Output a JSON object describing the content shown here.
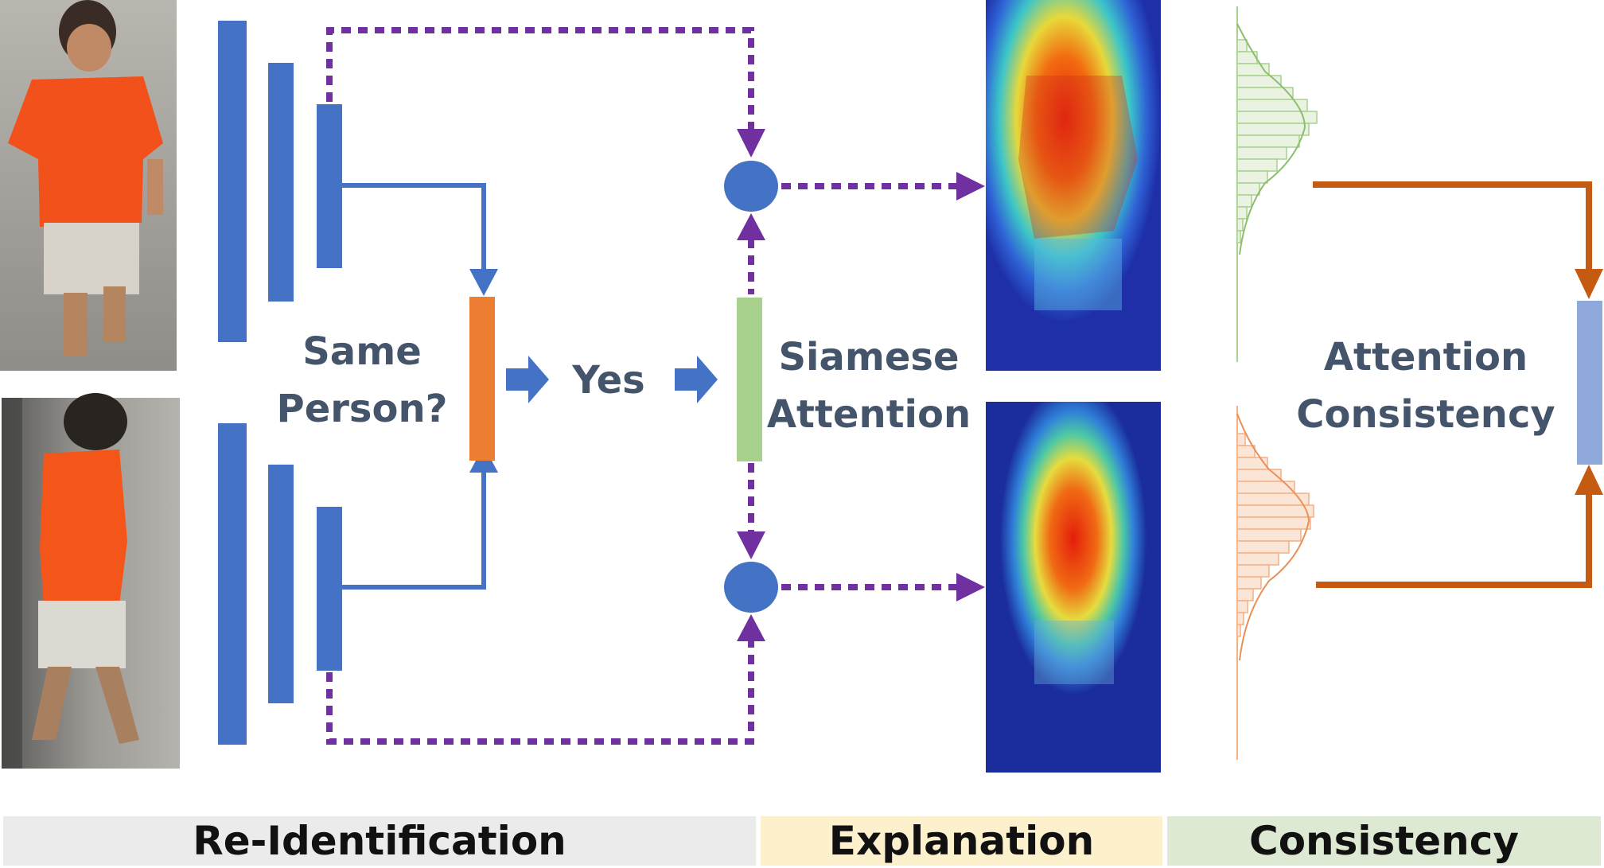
{
  "labels": {
    "same_person_line1": "Same",
    "same_person_line2": "Person?",
    "yes": "Yes",
    "siamese_line1": "Siamese",
    "siamese_line2": "Attention",
    "consistency_line1": "Attention",
    "consistency_line2": "Consistency"
  },
  "sections": [
    {
      "label": "Re-Identification",
      "color": "#ebebeb"
    },
    {
      "label": "Explanation",
      "color": "#fdf0cc"
    },
    {
      "label": "Consistency",
      "color": "#dde9d3"
    }
  ],
  "colors": {
    "encoder_blue": "#4472c4",
    "decision_orange": "#ed7d31",
    "attention_green": "#a9d18e",
    "consistency_blue": "#8fa9dc",
    "dotted_purple": "#7030a0",
    "consistency_arrow": "#c55a11",
    "hist_green": "#a9d18e",
    "hist_orange": "#f4b183"
  },
  "images": {
    "person_top": "person-photo-orange-shirt-walking",
    "person_bottom": "person-photo-orange-shirt-side-view",
    "heatmap_top": "attention-heatmap-torso",
    "heatmap_bottom": "attention-heatmap-body"
  }
}
